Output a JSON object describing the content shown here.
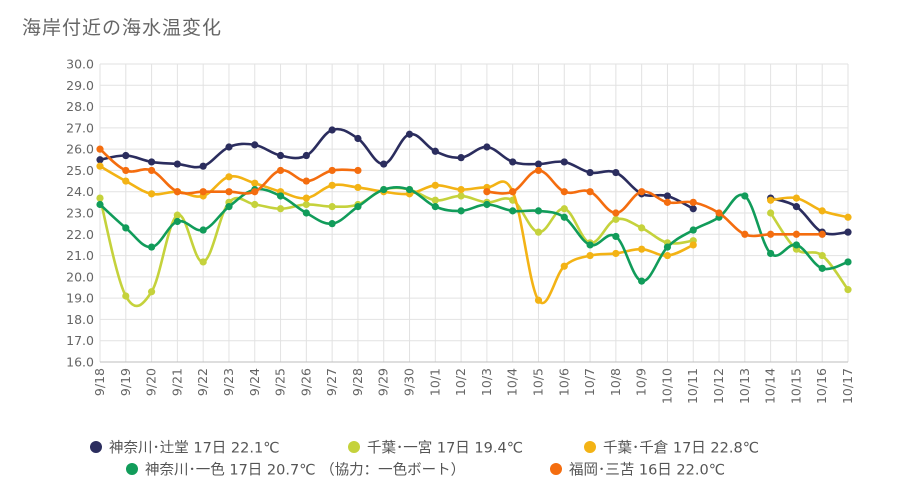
{
  "title": "海岸付近の海水温変化",
  "chart_data": {
    "type": "line",
    "title": "海岸付近の海水温変化",
    "categories": [
      "9/18",
      "9/19",
      "9/20",
      "9/21",
      "9/22",
      "9/23",
      "9/24",
      "9/25",
      "9/26",
      "9/27",
      "9/28",
      "9/29",
      "9/30",
      "10/1",
      "10/2",
      "10/3",
      "10/4",
      "10/5",
      "10/6",
      "10/7",
      "10/8",
      "10/9",
      "10/10",
      "10/11",
      "10/12",
      "10/13",
      "10/14",
      "10/15",
      "10/16",
      "10/17"
    ],
    "ylim": [
      16.0,
      30.0
    ],
    "yticks": [
      "16.0",
      "17.0",
      "18.0",
      "19.0",
      "20.0",
      "21.0",
      "22.0",
      "23.0",
      "24.0",
      "25.0",
      "26.0",
      "27.0",
      "28.0",
      "29.0",
      "30.0"
    ],
    "grid": true,
    "legend_position": "bottom",
    "series": [
      {
        "name": "神奈川･辻堂 17日 22.1℃",
        "color": "#2b2d5e",
        "values": [
          25.5,
          25.7,
          25.4,
          25.3,
          25.2,
          26.1,
          26.2,
          25.7,
          25.7,
          26.9,
          26.5,
          25.3,
          26.7,
          25.9,
          25.6,
          26.1,
          25.4,
          25.3,
          25.4,
          24.9,
          24.9,
          23.9,
          23.8,
          23.2,
          null,
          null,
          23.7,
          23.3,
          22.1,
          22.1
        ]
      },
      {
        "name": "千葉･一宮 17日 19.4℃",
        "color": "#c5d23c",
        "values": [
          23.7,
          19.1,
          19.3,
          22.9,
          20.7,
          23.5,
          23.4,
          23.2,
          23.4,
          23.3,
          23.4,
          24.1,
          24.1,
          23.6,
          23.8,
          23.5,
          23.6,
          22.1,
          23.2,
          21.6,
          22.7,
          22.3,
          21.6,
          21.7,
          null,
          null,
          23.0,
          21.3,
          21.0,
          19.4
        ]
      },
      {
        "name": "千葉･千倉 17日 22.8℃",
        "color": "#f3b315",
        "values": [
          25.2,
          24.5,
          23.9,
          24.0,
          23.8,
          24.7,
          24.4,
          24.0,
          23.7,
          24.3,
          24.2,
          24.0,
          23.9,
          24.3,
          24.1,
          24.2,
          24.0,
          18.9,
          20.5,
          21.0,
          21.1,
          21.3,
          21.0,
          21.5,
          null,
          null,
          23.6,
          23.7,
          23.1,
          22.8
        ]
      },
      {
        "name": "神奈川･一色 17日 20.7℃ （協力：一色ボート）",
        "color": "#119c5a",
        "values": [
          23.4,
          22.3,
          21.4,
          22.6,
          22.2,
          23.3,
          24.1,
          23.8,
          23.0,
          22.5,
          23.3,
          24.1,
          24.1,
          23.3,
          23.1,
          23.4,
          23.1,
          23.1,
          22.8,
          21.5,
          21.9,
          19.8,
          21.4,
          22.2,
          22.8,
          23.8,
          21.1,
          21.5,
          20.4,
          20.7
        ]
      },
      {
        "name": "福岡･三苫 16日 22.0℃",
        "color": "#f46d0f",
        "values": [
          26.0,
          25.0,
          25.0,
          24.0,
          24.0,
          24.0,
          24.0,
          25.0,
          24.5,
          25.0,
          25.0,
          null,
          null,
          null,
          null,
          24.0,
          24.0,
          25.0,
          24.0,
          24.0,
          23.0,
          24.0,
          23.5,
          23.5,
          23.0,
          22.0,
          22.0,
          22.0,
          22.0,
          null
        ]
      }
    ]
  }
}
